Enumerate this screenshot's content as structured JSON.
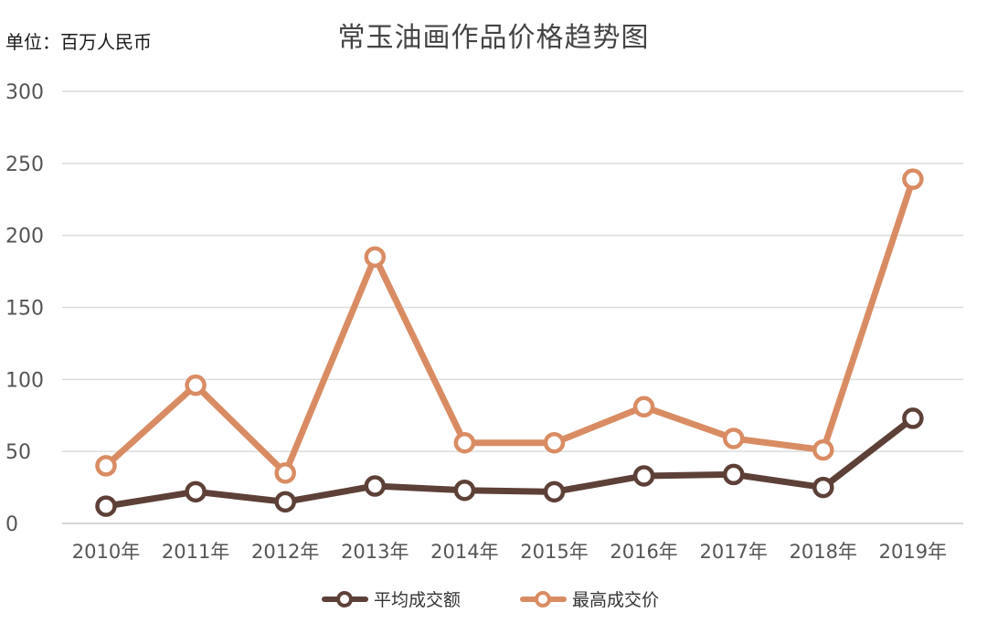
{
  "unit_label": "单位：百万人民币",
  "chart_data": {
    "type": "line",
    "title": "常玉油画作品价格趋势图",
    "categories": [
      "2010年",
      "2011年",
      "2012年",
      "2013年",
      "2014年",
      "2015年",
      "2016年",
      "2017年",
      "2018年",
      "2019年"
    ],
    "ylim": [
      0,
      300
    ],
    "yticks": [
      0,
      50,
      100,
      150,
      200,
      250,
      300
    ],
    "grid": true,
    "legend_position": "bottom-center",
    "series": [
      {
        "name": "平均成交额",
        "color": "#5d4037",
        "values": [
          12,
          22,
          15,
          26,
          23,
          22,
          33,
          34,
          25,
          73
        ]
      },
      {
        "name": "最高成交价",
        "color": "#d98c63",
        "values": [
          40,
          96,
          35,
          185,
          56,
          56,
          81,
          59,
          51,
          239
        ]
      }
    ]
  }
}
